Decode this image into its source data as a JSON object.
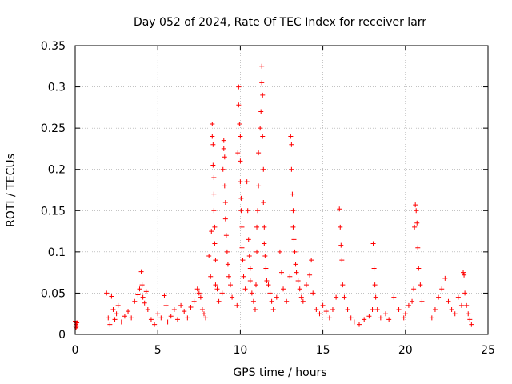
{
  "chart_data": {
    "type": "scatter",
    "title": "Day 052 of 2024, Rate Of TEC Index for receiver larr",
    "xlabel": "GPS time / hours",
    "ylabel": "ROTI / TECUs",
    "xlim": [
      0,
      25
    ],
    "ylim": [
      0,
      0.35
    ],
    "x_ticks": [
      0,
      5,
      10,
      15,
      20,
      25
    ],
    "x_tick_labels": [
      "0",
      "5",
      "10",
      "15",
      "20",
      "25"
    ],
    "y_ticks": [
      0,
      0.05,
      0.1,
      0.15,
      0.2,
      0.25,
      0.3,
      0.35
    ],
    "y_tick_labels": [
      "0",
      "0.05",
      "0.1",
      "0.15",
      "0.2",
      "0.25",
      "0.3",
      "0.35"
    ],
    "grid": true,
    "marker": "+",
    "series": [
      {
        "name": "ROTI",
        "color": "#ff0000",
        "x": [
          0.0,
          0.0,
          0.05,
          0.05,
          0.1,
          0.1,
          1.9,
          2.0,
          2.1,
          2.2,
          2.3,
          2.4,
          2.5,
          2.6,
          2.8,
          3.0,
          3.2,
          3.4,
          3.6,
          3.8,
          3.9,
          4.0,
          4.05,
          4.1,
          4.2,
          4.3,
          4.4,
          4.6,
          4.8,
          5.0,
          5.2,
          5.4,
          5.5,
          5.6,
          5.8,
          6.0,
          6.2,
          6.4,
          6.6,
          6.8,
          7.0,
          7.2,
          7.4,
          7.5,
          7.6,
          7.7,
          7.8,
          7.9,
          8.1,
          8.2,
          8.25,
          8.3,
          8.3,
          8.35,
          8.35,
          8.4,
          8.4,
          8.4,
          8.45,
          8.45,
          8.5,
          8.5,
          8.6,
          8.7,
          8.9,
          8.95,
          9.0,
          9.0,
          9.05,
          9.05,
          9.1,
          9.1,
          9.15,
          9.2,
          9.25,
          9.3,
          9.4,
          9.5,
          9.8,
          9.85,
          9.9,
          9.9,
          9.95,
          10.0,
          10.0,
          10.0,
          10.05,
          10.05,
          10.1,
          10.1,
          10.15,
          10.2,
          10.3,
          10.4,
          10.45,
          10.5,
          10.55,
          10.6,
          10.6,
          10.7,
          10.8,
          10.9,
          10.95,
          11.0,
          11.0,
          11.05,
          11.1,
          11.1,
          11.2,
          11.25,
          11.3,
          11.3,
          11.35,
          11.35,
          11.4,
          11.4,
          11.45,
          11.45,
          11.5,
          11.55,
          11.6,
          11.7,
          11.8,
          11.9,
          12.0,
          12.2,
          12.4,
          12.5,
          12.6,
          12.8,
          13.0,
          13.05,
          13.1,
          13.1,
          13.15,
          13.2,
          13.2,
          13.25,
          13.3,
          13.35,
          13.4,
          13.5,
          13.6,
          13.7,
          13.8,
          14.0,
          14.2,
          14.3,
          14.4,
          14.6,
          14.8,
          15.0,
          15.2,
          15.4,
          15.6,
          15.8,
          16.0,
          16.05,
          16.1,
          16.15,
          16.2,
          16.3,
          16.5,
          16.7,
          16.9,
          17.2,
          17.5,
          17.8,
          18.0,
          18.05,
          18.1,
          18.15,
          18.2,
          18.3,
          18.5,
          18.8,
          19.0,
          19.3,
          19.6,
          19.9,
          20.0,
          20.2,
          20.4,
          20.5,
          20.55,
          20.6,
          20.65,
          20.7,
          20.75,
          20.8,
          20.9,
          21.0,
          21.6,
          21.8,
          22.0,
          22.2,
          22.4,
          22.6,
          22.8,
          23.0,
          23.2,
          23.4,
          23.5,
          23.55,
          23.6,
          23.7,
          23.8,
          23.9,
          24.0
        ],
        "y": [
          0.01,
          0.016,
          0.012,
          0.008,
          0.014,
          0.01,
          0.05,
          0.02,
          0.012,
          0.046,
          0.03,
          0.018,
          0.025,
          0.035,
          0.015,
          0.022,
          0.028,
          0.02,
          0.04,
          0.048,
          0.055,
          0.076,
          0.06,
          0.045,
          0.038,
          0.052,
          0.03,
          0.018,
          0.012,
          0.025,
          0.02,
          0.047,
          0.035,
          0.015,
          0.022,
          0.03,
          0.018,
          0.035,
          0.028,
          0.02,
          0.033,
          0.04,
          0.055,
          0.05,
          0.045,
          0.03,
          0.025,
          0.02,
          0.095,
          0.07,
          0.125,
          0.255,
          0.24,
          0.23,
          0.205,
          0.19,
          0.17,
          0.15,
          0.13,
          0.11,
          0.09,
          0.06,
          0.055,
          0.04,
          0.05,
          0.2,
          0.235,
          0.225,
          0.215,
          0.18,
          0.16,
          0.14,
          0.12,
          0.1,
          0.085,
          0.07,
          0.06,
          0.045,
          0.035,
          0.22,
          0.3,
          0.278,
          0.255,
          0.24,
          0.21,
          0.185,
          0.165,
          0.15,
          0.13,
          0.105,
          0.09,
          0.07,
          0.055,
          0.185,
          0.15,
          0.115,
          0.095,
          0.08,
          0.065,
          0.05,
          0.04,
          0.03,
          0.06,
          0.1,
          0.13,
          0.15,
          0.18,
          0.22,
          0.25,
          0.27,
          0.325,
          0.305,
          0.29,
          0.24,
          0.2,
          0.16,
          0.13,
          0.11,
          0.095,
          0.08,
          0.065,
          0.06,
          0.05,
          0.04,
          0.03,
          0.045,
          0.1,
          0.075,
          0.055,
          0.04,
          0.07,
          0.24,
          0.23,
          0.2,
          0.17,
          0.15,
          0.13,
          0.115,
          0.1,
          0.085,
          0.075,
          0.065,
          0.055,
          0.045,
          0.04,
          0.06,
          0.072,
          0.09,
          0.05,
          0.03,
          0.025,
          0.035,
          0.028,
          0.02,
          0.03,
          0.045,
          0.152,
          0.13,
          0.108,
          0.09,
          0.06,
          0.045,
          0.03,
          0.02,
          0.015,
          0.012,
          0.018,
          0.022,
          0.03,
          0.11,
          0.08,
          0.06,
          0.045,
          0.03,
          0.02,
          0.025,
          0.018,
          0.045,
          0.03,
          0.02,
          0.025,
          0.035,
          0.04,
          0.055,
          0.13,
          0.157,
          0.15,
          0.135,
          0.105,
          0.08,
          0.06,
          0.04,
          0.02,
          0.03,
          0.045,
          0.055,
          0.068,
          0.04,
          0.03,
          0.025,
          0.045,
          0.035,
          0.075,
          0.072,
          0.05,
          0.035,
          0.025,
          0.018,
          0.012
        ]
      }
    ]
  }
}
